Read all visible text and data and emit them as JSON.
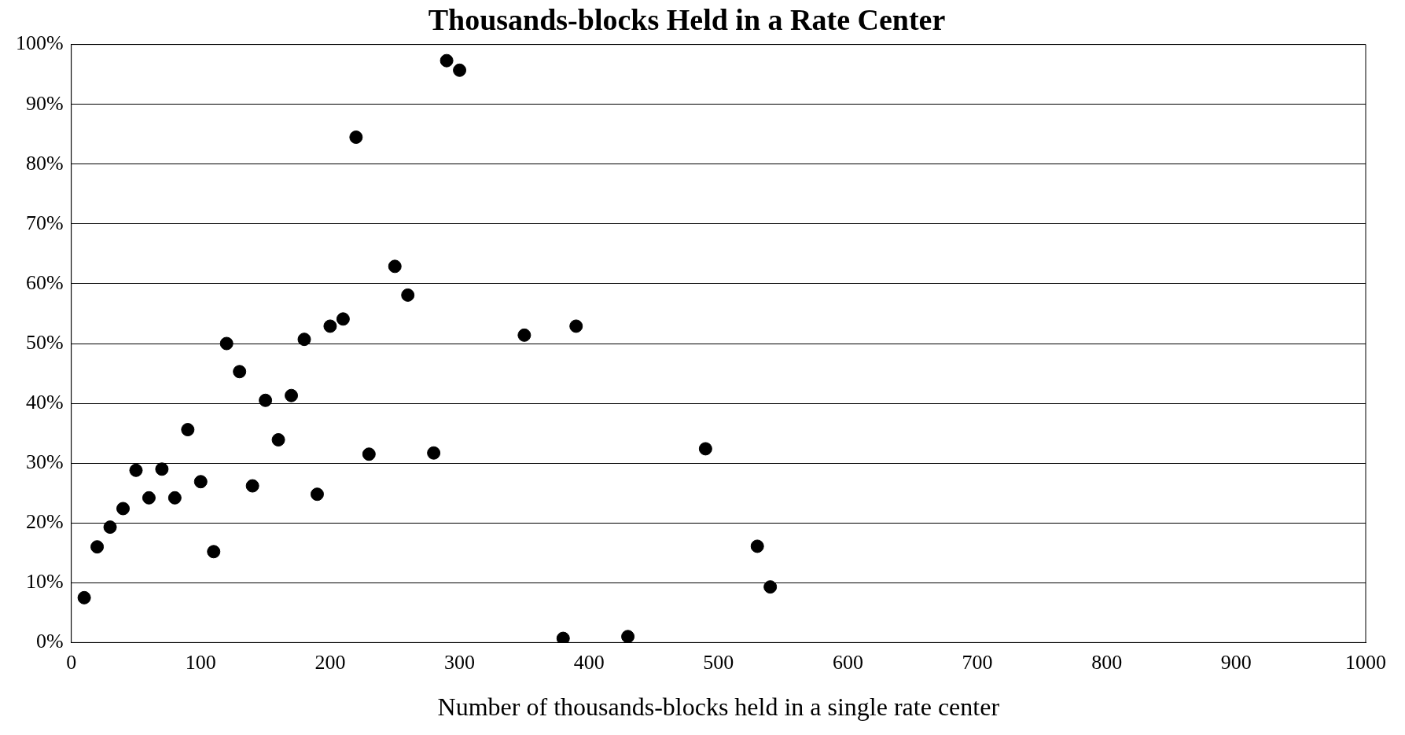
{
  "chart_data": {
    "type": "scatter",
    "title": "Thousands-blocks Held in a Rate Center",
    "xlabel": "Number of thousands-blocks held in a single rate center",
    "x": [
      10,
      20,
      30,
      40,
      50,
      60,
      70,
      80,
      90,
      100,
      110,
      120,
      130,
      140,
      150,
      160,
      170,
      180,
      190,
      200,
      210,
      220,
      230,
      250,
      260,
      280,
      290,
      300,
      350,
      380,
      390,
      430,
      490,
      530,
      540
    ],
    "series": [
      {
        "color": "#000000",
        "values": [
          7.5,
          16,
          19.3,
          22.4,
          28.8,
          24.2,
          29,
          24.2,
          35.6,
          26.9,
          15.2,
          50,
          45.3,
          26.2,
          40.5,
          33.9,
          41.3,
          50.7,
          24.8,
          52.9,
          54.1,
          84.5,
          31.5,
          62.9,
          58.1,
          31.7,
          97.3,
          95.7,
          51.4,
          0.7,
          52.9,
          1,
          32.4,
          16.1,
          9.3
        ]
      }
    ],
    "xlim": [
      0,
      1000
    ],
    "xticks": [
      0,
      100,
      200,
      300,
      400,
      500,
      600,
      700,
      800,
      900,
      1000
    ],
    "ylim": [
      0,
      100
    ],
    "yticks": [
      {
        "value": 0,
        "label": "0%"
      },
      {
        "value": 10,
        "label": "10%"
      },
      {
        "value": 20,
        "label": "20%"
      },
      {
        "value": 30,
        "label": "30%"
      },
      {
        "value": 40,
        "label": "40%"
      },
      {
        "value": 50,
        "label": "50%"
      },
      {
        "value": 60,
        "label": "60%"
      },
      {
        "value": 70,
        "label": "70%"
      },
      {
        "value": 80,
        "label": "80%"
      },
      {
        "value": 90,
        "label": "90%"
      },
      {
        "value": 100,
        "label": "100%"
      }
    ],
    "grid": "y",
    "legend": false,
    "marker": "circle"
  }
}
